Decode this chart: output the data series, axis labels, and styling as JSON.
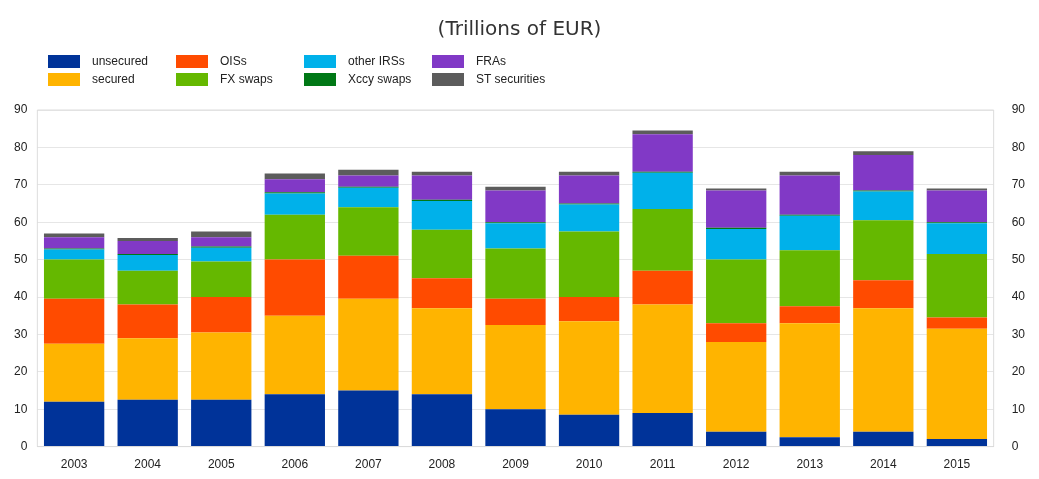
{
  "chart_data": {
    "type": "bar",
    "title": "(Trillions of EUR)",
    "stacked": true,
    "grid": "y",
    "legend": "top left",
    "categories": [
      "2003",
      "2004",
      "2005",
      "2006",
      "2007",
      "2008",
      "2009",
      "2010",
      "2011",
      "2012",
      "2013",
      "2014",
      "2015"
    ],
    "ylim": [
      0,
      90
    ],
    "yticks": [
      0,
      10,
      20,
      30,
      40,
      50,
      60,
      70,
      80,
      90
    ],
    "y2lim": [
      0,
      90
    ],
    "y2ticks": [
      0,
      10,
      20,
      30,
      40,
      50,
      60,
      70,
      80,
      90
    ],
    "series": [
      {
        "name": "unsecured",
        "color": "#003399",
        "values": [
          12,
          12.5,
          12.5,
          14,
          15,
          14,
          10,
          8.5,
          9,
          4,
          2.5,
          4,
          2
        ]
      },
      {
        "name": "secured",
        "color": "#ffb400",
        "values": [
          15.5,
          16.5,
          18,
          21,
          24.5,
          23,
          22.5,
          25,
          29,
          24,
          30.5,
          33,
          29.5
        ]
      },
      {
        "name": "OISs",
        "color": "#ff4b00",
        "values": [
          12,
          9,
          9.5,
          15,
          11.5,
          8,
          7,
          6.5,
          9,
          5,
          4.5,
          7.5,
          3
        ]
      },
      {
        "name": "FX swaps",
        "color": "#65b800",
        "values": [
          10.5,
          9,
          9.5,
          12,
          13,
          13,
          13.5,
          17.5,
          16.5,
          17,
          15,
          16,
          17
        ]
      },
      {
        "name": "other IRSs",
        "color": "#00b1ea",
        "values": [
          2.7,
          4.2,
          3.7,
          5.7,
          5.2,
          7.7,
          6.7,
          7.2,
          9.7,
          8.2,
          9.2,
          7.7,
          8.2
        ]
      },
      {
        "name": "Xccy swaps",
        "color": "#007816",
        "values": [
          0.3,
          0.3,
          0.3,
          0.3,
          0.3,
          0.3,
          0.3,
          0.3,
          0.3,
          0.3,
          0.3,
          0.3,
          0.3
        ]
      },
      {
        "name": "FRAs",
        "color": "#8139c6",
        "values": [
          3,
          3.5,
          2.5,
          3.5,
          3,
          6.5,
          8.5,
          7.5,
          10,
          10,
          10.5,
          9.5,
          8.5
        ]
      },
      {
        "name": "ST securities",
        "color": "#5c5c5c",
        "values": [
          1,
          0.8,
          1.5,
          1.5,
          1.5,
          1,
          1,
          1,
          1,
          0.5,
          1,
          1,
          0.5
        ]
      }
    ]
  }
}
